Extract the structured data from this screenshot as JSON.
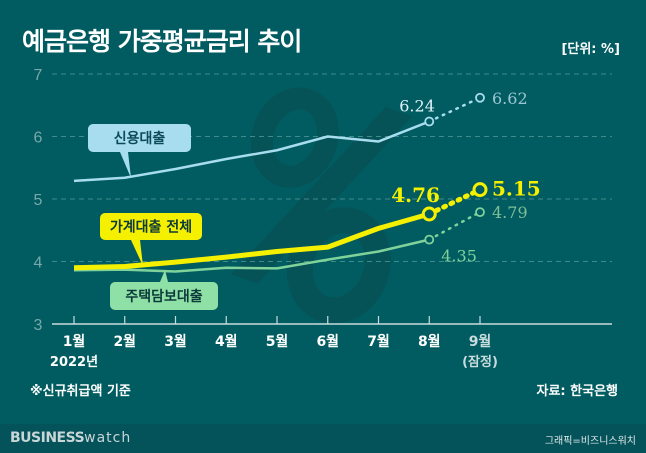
{
  "title": "예금은행 가중평균금리 추이",
  "unit_label": "[단위: %]",
  "note": "※신규취급액 기준",
  "source": "자료: 한국은행",
  "footer": {
    "logo": "BUSINESS watch",
    "logo_bold": "BUSINESS",
    "logo_light": "watch",
    "credit": "그래픽=비즈니스워치"
  },
  "chart_data": {
    "type": "line",
    "title": "예금은행 가중평균금리 추이",
    "ylim": [
      3,
      7
    ],
    "yticks": [
      "3",
      "4",
      "5",
      "6",
      "7"
    ],
    "grid": true,
    "categories": [
      "1월",
      "2월",
      "3월",
      "4월",
      "5월",
      "6월",
      "7월",
      "8월",
      "9월"
    ],
    "category_sub": {
      "0": "2022년",
      "8": "(잠정)"
    },
    "series": [
      {
        "name": "신용대출",
        "color": "#a8dcef",
        "values": [
          5.29,
          5.34,
          5.48,
          5.64,
          5.78,
          6.0,
          5.92,
          6.24,
          6.62
        ],
        "labels": {
          "7": "6.24",
          "8": "6.62"
        }
      },
      {
        "name": "가계대출 전체",
        "color": "#f5f000",
        "values": [
          3.9,
          3.92,
          3.99,
          4.07,
          4.16,
          4.23,
          4.53,
          4.76,
          5.15
        ],
        "labels": {
          "7": "4.76",
          "8": "5.15"
        }
      },
      {
        "name": "주택담보대출",
        "color": "#7fd39a",
        "values": [
          3.86,
          3.87,
          3.84,
          3.9,
          3.89,
          4.03,
          4.16,
          4.35,
          4.79
        ],
        "labels": {
          "7": "4.35",
          "8": "4.79"
        }
      }
    ],
    "dotted_last_segment": true
  }
}
